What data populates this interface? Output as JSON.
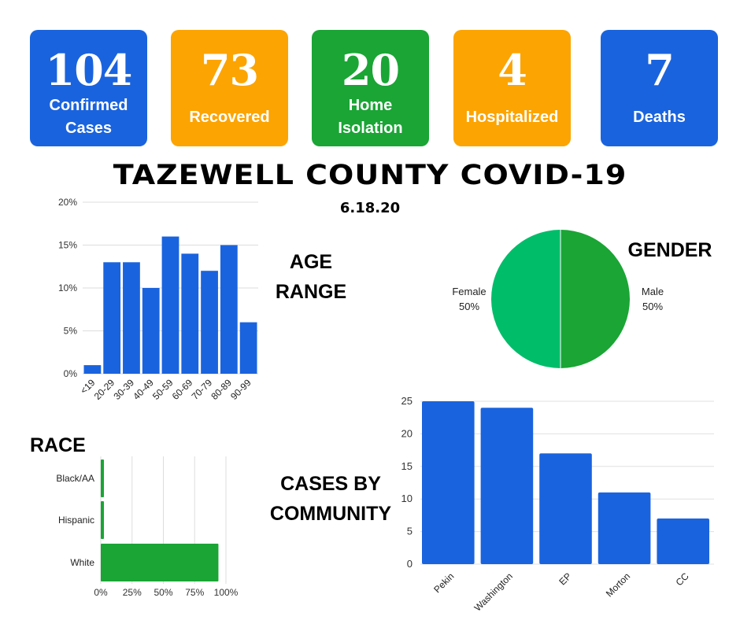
{
  "stats": [
    {
      "value": "104",
      "label_lines": [
        "Confirmed",
        "Cases"
      ],
      "color": "#1a63de"
    },
    {
      "value": "73",
      "label_lines": [
        "Recovered"
      ],
      "color": "#fca401"
    },
    {
      "value": "20",
      "label_lines": [
        "Home",
        "Isolation"
      ],
      "color": "#1aa535"
    },
    {
      "value": "4",
      "label_lines": [
        "Hospitalized"
      ],
      "color": "#fca401"
    },
    {
      "value": "7",
      "label_lines": [
        "Deaths"
      ],
      "color": "#1a63de"
    }
  ],
  "title": "TAZEWELL COUNTY COVID-19",
  "date": "6.18.20",
  "sections": {
    "age": [
      "AGE",
      "RANGE"
    ],
    "gender": "GENDER",
    "race": "RACE",
    "community": [
      "CASES BY",
      "COMMUNITY"
    ]
  },
  "colors": {
    "bar_blue": "#1a63de",
    "bar_green": "#1aa535",
    "pie_female": "#00bd6a",
    "pie_male": "#1aa535"
  },
  "chart_data": [
    {
      "type": "bar",
      "categories": [
        "<19",
        "20-29",
        "30-39",
        "40-49",
        "50-59",
        "60-69",
        "70-79",
        "80-89",
        "90-99"
      ],
      "values": [
        1,
        13,
        13,
        10,
        16,
        14,
        12,
        15,
        6
      ],
      "unit": "%",
      "ylim": [
        0,
        20
      ],
      "yticks": [
        "0%",
        "5%",
        "10%",
        "15%",
        "20%"
      ],
      "grid": true
    },
    {
      "type": "pie",
      "labels": [
        "Female",
        "Male"
      ],
      "values": [
        50,
        50
      ],
      "value_labels": [
        "50%",
        "50%"
      ]
    },
    {
      "type": "bar",
      "orientation": "horizontal",
      "categories": [
        "Black/AA",
        "Hispanic",
        "White"
      ],
      "values": [
        1,
        1,
        94
      ],
      "xlim": [
        0,
        100
      ],
      "xticks": [
        "0%",
        "25%",
        "50%",
        "75%",
        "100%"
      ],
      "grid": true
    },
    {
      "type": "bar",
      "categories": [
        "Pekin",
        "Washington",
        "EP",
        "Morton",
        "CC"
      ],
      "values": [
        25,
        24,
        17,
        11,
        7
      ],
      "ylim": [
        0,
        25
      ],
      "yticks": [
        "0",
        "5",
        "10",
        "15",
        "20",
        "25"
      ],
      "grid": true
    }
  ]
}
